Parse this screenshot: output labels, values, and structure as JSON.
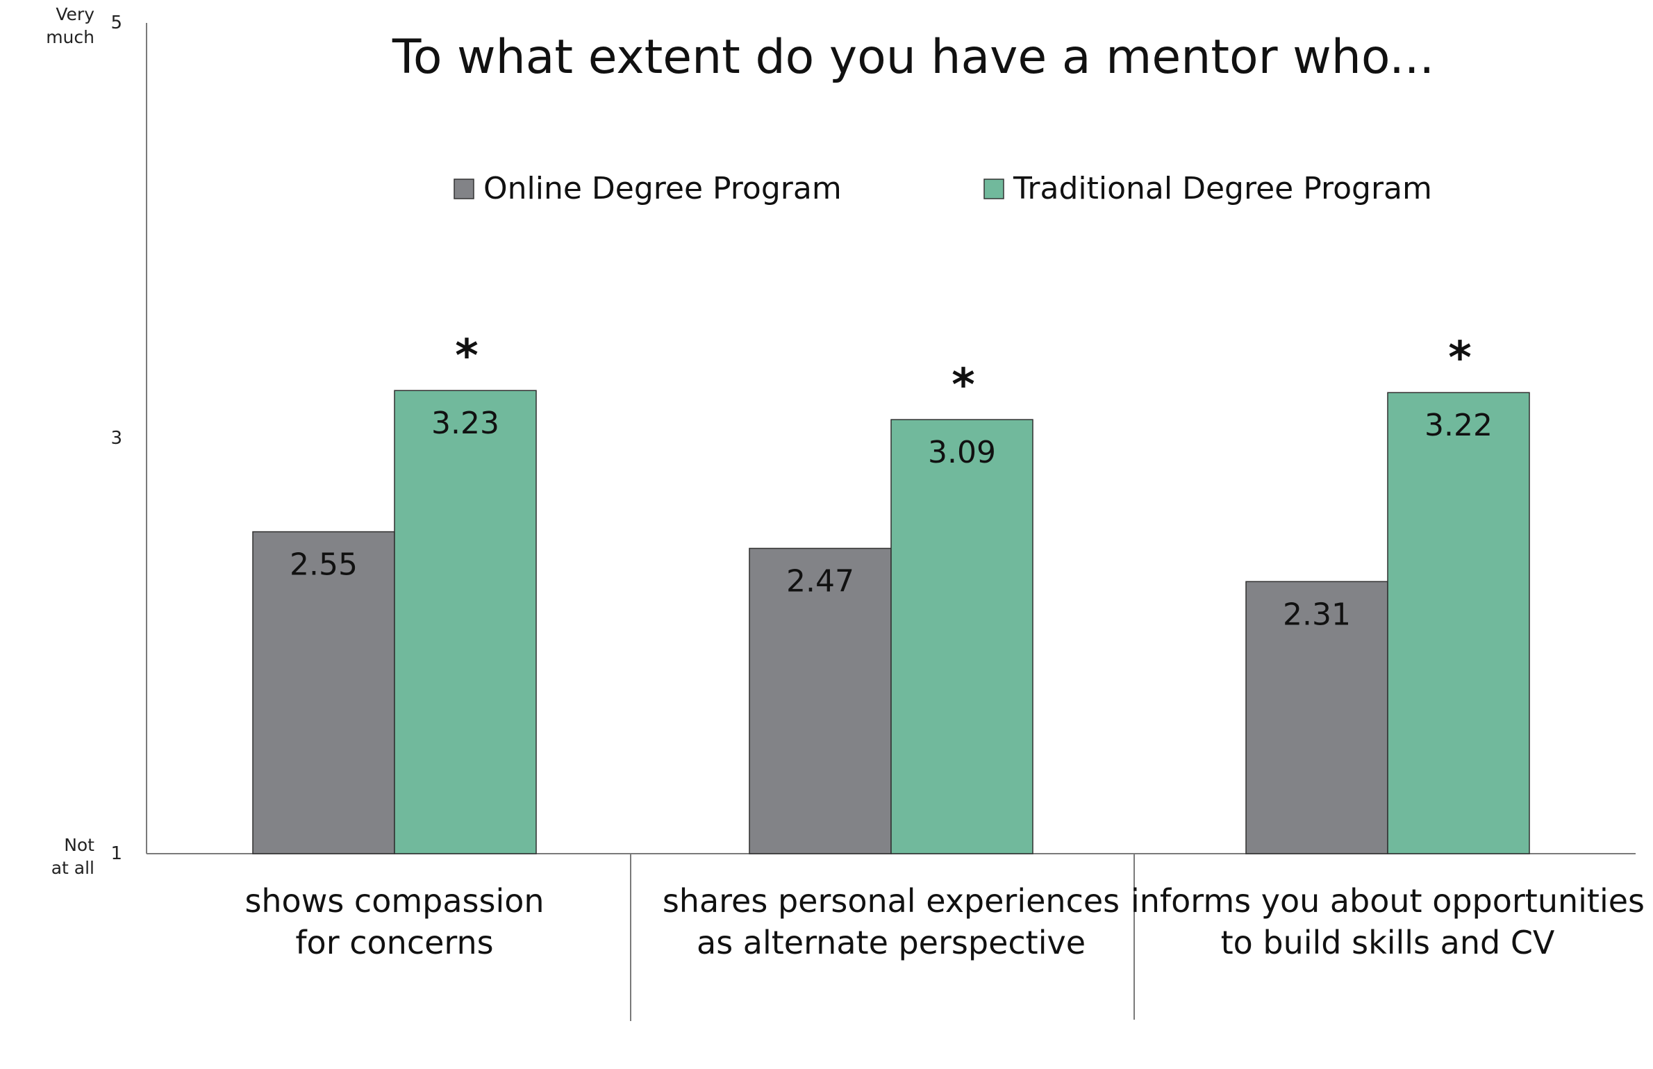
{
  "chart_data": {
    "type": "bar",
    "title": "To what extent do you have a mentor who...",
    "xlabel": "",
    "ylabel": "",
    "ylim": [
      1,
      5
    ],
    "yticks": [
      {
        "value": 5,
        "label": "5",
        "anchor": "Very much"
      },
      {
        "value": 3,
        "label": "3",
        "anchor": ""
      },
      {
        "value": 1,
        "label": "1",
        "anchor": "Not at all"
      }
    ],
    "categories": [
      [
        "shows compassion",
        "for concerns"
      ],
      [
        "shares personal experiences",
        "as alternate perspective"
      ],
      [
        "informs you about opportunities",
        "to build skills and CV"
      ]
    ],
    "series": [
      {
        "name": "Online Degree Program",
        "color": "#828387",
        "values": [
          2.55,
          2.47,
          2.31
        ]
      },
      {
        "name": "Traditional Degree Program",
        "color": "#71b99c",
        "values": [
          3.23,
          3.09,
          3.22
        ]
      }
    ],
    "significance_marks": [
      "*",
      "*",
      "*"
    ],
    "grid": false,
    "legend_position": "top-center"
  }
}
